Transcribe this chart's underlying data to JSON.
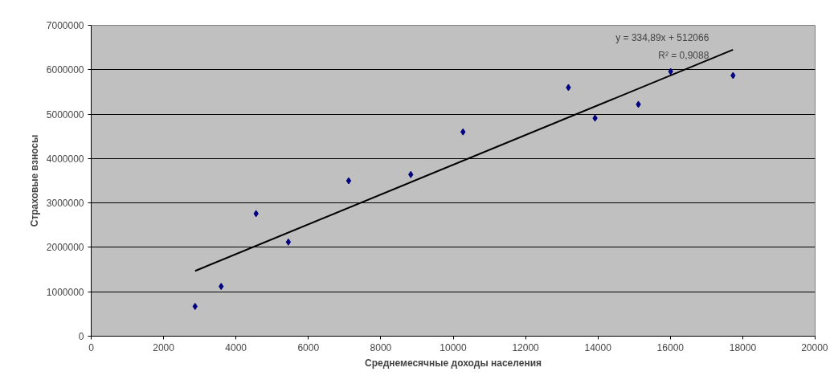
{
  "chart_data": {
    "type": "scatter",
    "xlabel": "Среднемесячные доходы населения",
    "ylabel": "Страховые взносы",
    "series": [
      {
        "color": "#000080",
        "marker": "diamond",
        "x": [
          2870,
          3590,
          4555,
          5447,
          7113,
          8829,
          10272,
          13184,
          13920,
          15117,
          16008,
          17732
        ],
        "values": [
          670000,
          1120000,
          2760000,
          2120000,
          3500000,
          3640000,
          4600000,
          5600000,
          4910000,
          5220000,
          5960000,
          5870000
        ]
      },
      {
        "type": "line",
        "color": "#000000",
        "x": [
          2870,
          17732
        ],
        "values": [
          1470000,
          6450000
        ]
      }
    ],
    "annotations": [
      "y = 334,89x + 512066",
      "R² = 0,9088"
    ],
    "xlim": [
      0,
      20000
    ],
    "xticks": [
      0,
      2000,
      4000,
      6000,
      8000,
      10000,
      12000,
      14000,
      16000,
      18000,
      20000
    ],
    "ylim": [
      0,
      7000000
    ],
    "yticks": [
      0,
      1000000,
      2000000,
      3000000,
      4000000,
      5000000,
      6000000,
      7000000
    ],
    "grid": "y"
  }
}
